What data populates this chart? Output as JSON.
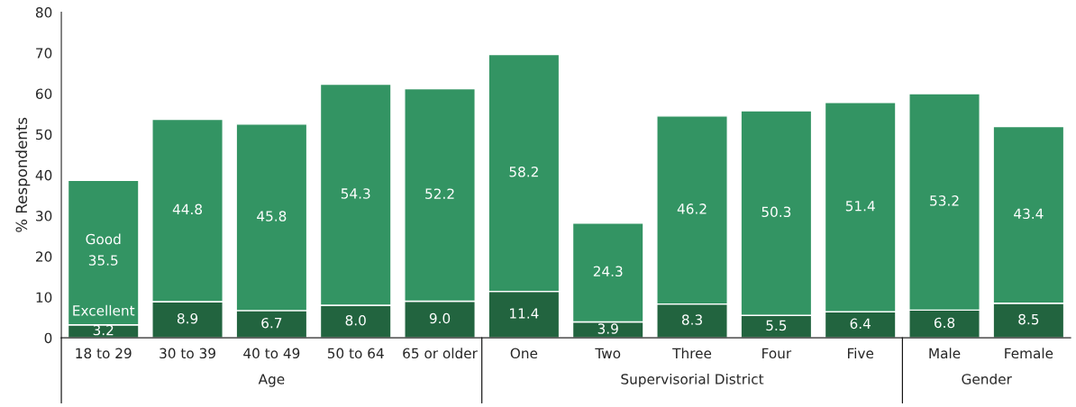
{
  "chart_data": [
    {
      "type": "bar",
      "stacked": true,
      "ylabel": "% Respondents",
      "xlabel": "Age",
      "categories": [
        "18 to 29",
        "30 to 39",
        "40 to 49",
        "50 to 64",
        "65 or older"
      ],
      "series": [
        {
          "name": "Excellent",
          "color": "#22643f",
          "values": [
            3.2,
            8.9,
            6.7,
            8.0,
            9.0
          ],
          "value_labels": [
            "3.2",
            "8.9",
            "6.7",
            "8.0",
            "9.0"
          ]
        },
        {
          "name": "Good",
          "color": "#339463",
          "values": [
            35.5,
            44.8,
            45.8,
            54.3,
            52.2
          ],
          "value_labels": [
            "35.5",
            "44.8",
            "45.8",
            "54.3",
            "52.2"
          ]
        }
      ],
      "ylim": [
        0,
        80
      ],
      "yticks": [
        0,
        10,
        20,
        30,
        40,
        50,
        60,
        70,
        80
      ],
      "legend": false
    },
    {
      "type": "bar",
      "stacked": true,
      "xlabel": "Supervisorial District",
      "categories": [
        "One",
        "Two",
        "Three",
        "Four",
        "Five"
      ],
      "series": [
        {
          "color": "#22643f",
          "values": [
            11.4,
            3.9,
            8.3,
            5.5,
            6.4
          ],
          "value_labels": [
            "11.4",
            "3.9",
            "8.3",
            "5.5",
            "6.4"
          ]
        },
        {
          "color": "#339463",
          "values": [
            58.2,
            24.3,
            46.2,
            50.3,
            51.4
          ],
          "value_labels": [
            "58.2",
            "24.3",
            "46.2",
            "50.3",
            "51.4"
          ]
        }
      ],
      "ylim": [
        0,
        80
      ],
      "tick_labels": "x",
      "legend": false
    },
    {
      "type": "bar",
      "stacked": true,
      "xlabel": "Gender",
      "categories": [
        "Male",
        "Female"
      ],
      "series": [
        {
          "color": "#22643f",
          "values": [
            6.8,
            8.5
          ],
          "value_labels": [
            "6.8",
            "8.5"
          ]
        },
        {
          "color": "#339463",
          "values": [
            53.2,
            43.4
          ],
          "value_labels": [
            "53.2",
            "43.4"
          ]
        }
      ],
      "ylim": [
        0,
        80
      ],
      "tick_labels": "x",
      "legend": false
    }
  ]
}
